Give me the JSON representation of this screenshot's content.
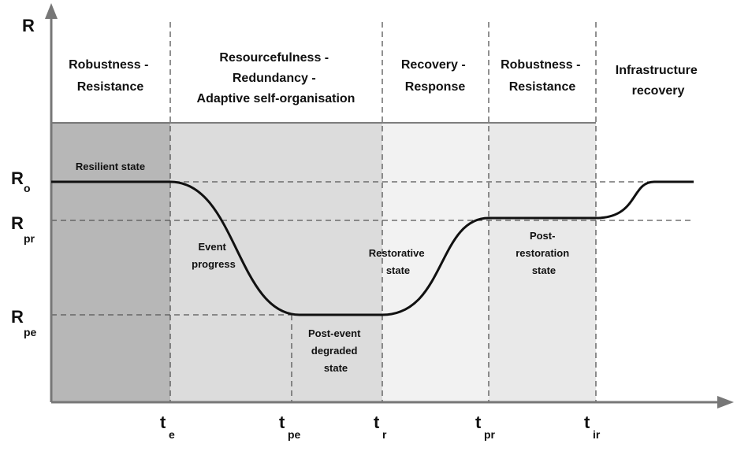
{
  "colors": {
    "band_dark": "#b7b7b7",
    "band_mid": "#dcdcdc",
    "band_light": "#f2f2f2",
    "band_lightest": "#e9e9e9",
    "line": "#111111",
    "axis": "#777777",
    "dash": "#555555"
  },
  "phases": [
    {
      "lines": [
        "Robustness -",
        "Resistance"
      ]
    },
    {
      "lines": [
        "Resourcefulness -",
        "Redundancy -",
        "Adaptive self-organisation"
      ]
    },
    {
      "lines": [
        "Recovery -",
        "Response"
      ]
    },
    {
      "lines": [
        "Robustness -",
        "Resistance"
      ]
    },
    {
      "lines": [
        "Infrastructure",
        "recovery"
      ]
    }
  ],
  "y_axis": {
    "label": "R",
    "levels": [
      {
        "main": "R",
        "sub": "o"
      },
      {
        "main": "R",
        "sub": "pr"
      },
      {
        "main": "R",
        "sub": "pe"
      }
    ]
  },
  "x_axis": {
    "ticks": [
      {
        "main": "t",
        "sub": "e"
      },
      {
        "main": "t",
        "sub": "pe"
      },
      {
        "main": "t",
        "sub": "r"
      },
      {
        "main": "t",
        "sub": "pr"
      },
      {
        "main": "t",
        "sub": "ir"
      }
    ]
  },
  "states": [
    {
      "lines": [
        "Resilient state"
      ]
    },
    {
      "lines": [
        "Event",
        "progress"
      ]
    },
    {
      "lines": [
        "Post-event",
        "degraded",
        "state"
      ]
    },
    {
      "lines": [
        "Restorative",
        "state"
      ]
    },
    {
      "lines": [
        "Post-",
        "restoration",
        "state"
      ]
    }
  ]
}
